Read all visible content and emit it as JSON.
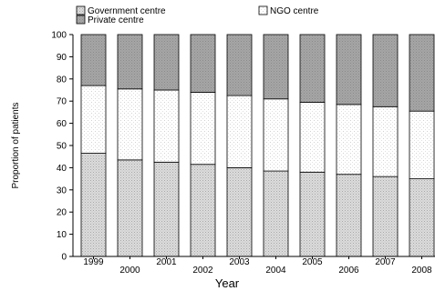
{
  "chart_data": {
    "type": "bar",
    "stacked": true,
    "categories": [
      "1999",
      "2000",
      "2001",
      "2002",
      "2003",
      "2004",
      "2005",
      "2006",
      "2007",
      "2008"
    ],
    "series": [
      {
        "name": "Government centre",
        "color": "#d9d9d9",
        "values": [
          46.5,
          43.5,
          42.5,
          41.5,
          40,
          38.5,
          38,
          37,
          36,
          35
        ]
      },
      {
        "name": "NGO centre",
        "color": "#ffffff",
        "values": [
          30.5,
          32,
          32.5,
          32.5,
          32.5,
          32.5,
          31.5,
          31.5,
          31.5,
          30.5
        ]
      },
      {
        "name": "Private centre",
        "color": "#999999",
        "values": [
          23,
          24.5,
          25,
          26,
          27.5,
          29,
          30.5,
          31.5,
          32.5,
          34.5
        ]
      }
    ],
    "xlabel": "Year",
    "ylabel": "Proportion of patients",
    "ylim": [
      0,
      100
    ],
    "yticks": [
      0,
      10,
      20,
      30,
      40,
      50,
      60,
      70,
      80,
      90,
      100
    ],
    "legend_position": "top"
  }
}
